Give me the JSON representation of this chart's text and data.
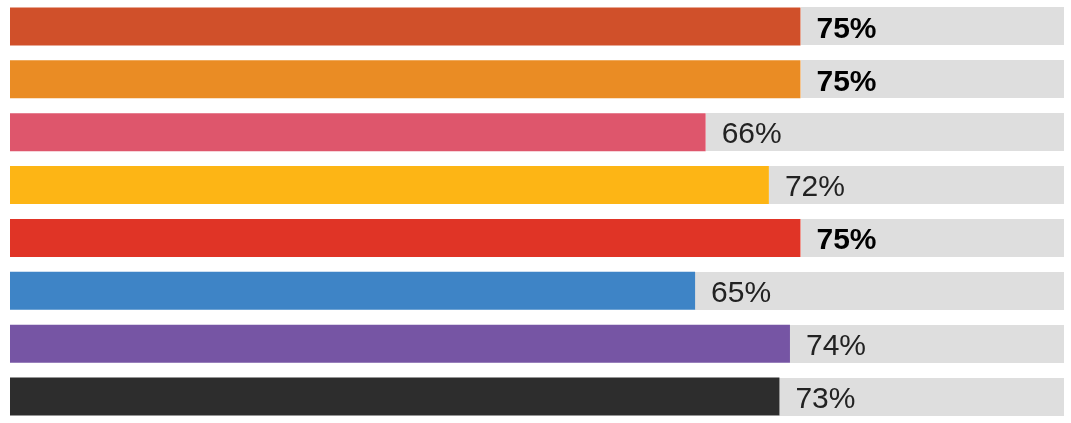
{
  "chart_data": {
    "type": "bar",
    "orientation": "horizontal",
    "categories": [
      null,
      null,
      null,
      null,
      null,
      null,
      null,
      null
    ],
    "values": [
      75,
      75,
      66,
      72,
      75,
      65,
      74,
      73
    ],
    "value_labels": [
      "75%",
      "75%",
      "66%",
      "72%",
      "75%",
      "65%",
      "74%",
      "73%"
    ],
    "colors": [
      "#d0502a",
      "#ea8c24",
      "#de566c",
      "#fdb515",
      "#e03426",
      "#3e84c6",
      "#7655a4",
      "#2d2d2d"
    ],
    "xlim": [
      0,
      100
    ],
    "tick_labels": false,
    "legend": false
  }
}
